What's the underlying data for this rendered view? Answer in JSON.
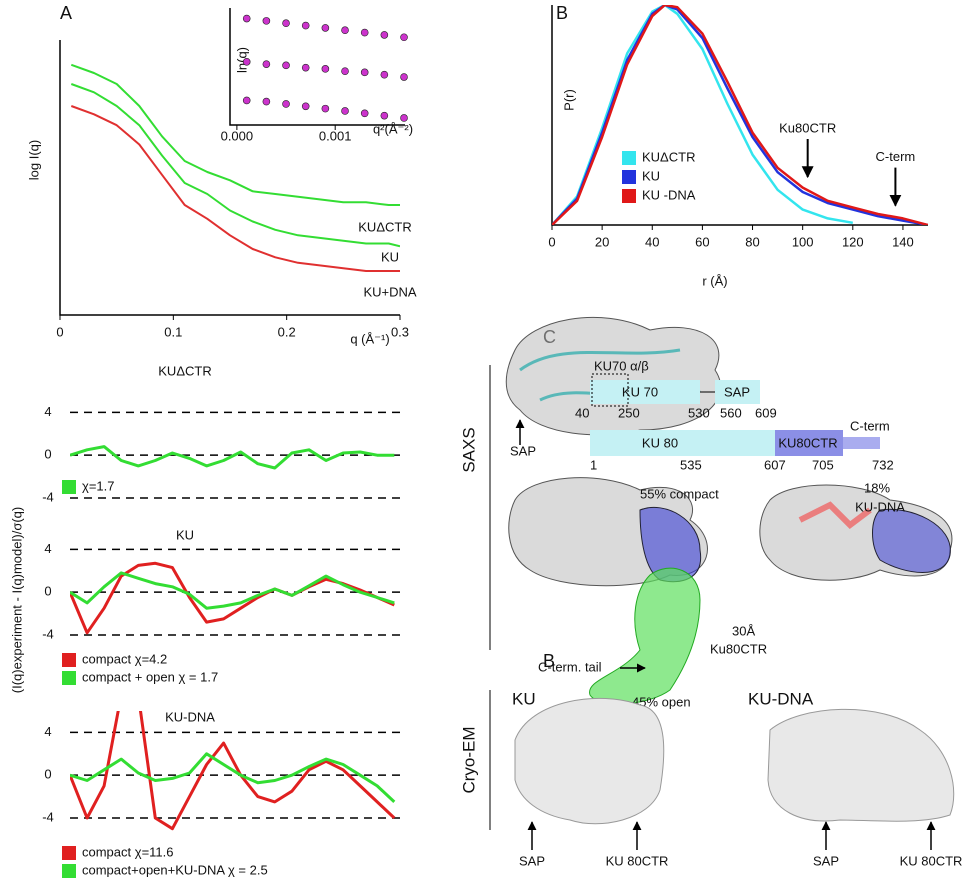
{
  "figure": {
    "panel_letters": [
      "A",
      "B",
      "C",
      "B"
    ]
  },
  "chart_data": [
    {
      "type": "line",
      "x_label": "q (Å⁻¹)",
      "y_label": "log I(q)",
      "x": [
        0.01,
        0.03,
        0.05,
        0.07,
        0.09,
        0.11,
        0.13,
        0.15,
        0.17,
        0.19,
        0.21,
        0.23,
        0.25,
        0.27,
        0.29,
        0.3
      ],
      "xlim": [
        0,
        0.3
      ],
      "xticks": [
        0,
        0.1,
        0.2,
        0.3
      ],
      "ylim": [
        0,
        10
      ],
      "series": [
        {
          "name": "KUΔCTR",
          "color": "#33dd33",
          "values": [
            9.1,
            8.8,
            8.4,
            7.6,
            6.5,
            5.6,
            5.2,
            4.9,
            4.5,
            4.4,
            4.3,
            4.2,
            4.1,
            4.1,
            4.0,
            4.0
          ]
        },
        {
          "name": "KU",
          "color": "#33dd33",
          "values": [
            8.4,
            8.1,
            7.6,
            6.9,
            5.8,
            4.8,
            4.4,
            3.8,
            3.4,
            3.1,
            2.9,
            2.8,
            2.7,
            2.6,
            2.6,
            2.5
          ]
        },
        {
          "name": "KU+DNA",
          "color": "#e03030",
          "values": [
            7.6,
            7.3,
            6.9,
            6.2,
            5.1,
            4.0,
            3.5,
            2.9,
            2.4,
            2.1,
            1.9,
            1.8,
            1.7,
            1.6,
            1.6,
            1.6
          ]
        }
      ]
    },
    {
      "type": "scatter",
      "x_label": "q²(Å⁻²)",
      "y_label": "ln(q)",
      "x": [
        0.0001,
        0.0003,
        0.0005,
        0.0007,
        0.0009,
        0.0011,
        0.0013,
        0.0015,
        0.0017
      ],
      "xlim": [
        -7e-05,
        0.00171
      ],
      "xticks": [
        {
          "value": 0,
          "label": "0.000"
        },
        {
          "value": 0.001,
          "label": "0.001"
        }
      ],
      "ylim": [
        0,
        1
      ],
      "series": [
        {
          "color": "#cc33cc",
          "values": [
            0.91,
            0.89,
            0.87,
            0.85,
            0.83,
            0.81,
            0.79,
            0.77,
            0.75
          ]
        },
        {
          "color": "#cc33cc",
          "values": [
            0.54,
            0.52,
            0.51,
            0.49,
            0.48,
            0.46,
            0.45,
            0.43,
            0.41
          ]
        },
        {
          "color": "#cc33cc",
          "values": [
            0.21,
            0.2,
            0.18,
            0.16,
            0.14,
            0.12,
            0.1,
            0.08,
            0.06
          ]
        }
      ]
    },
    {
      "type": "line",
      "x_label": "r (Å)",
      "y_label": "P(r)",
      "x": [
        0,
        10,
        20,
        30,
        40,
        45,
        50,
        60,
        70,
        80,
        90,
        100,
        110,
        120,
        130,
        140,
        150
      ],
      "xlim": [
        0,
        150
      ],
      "xticks": [
        0,
        20,
        40,
        60,
        80,
        100,
        120,
        140
      ],
      "ylim": [
        0,
        1
      ],
      "series": [
        {
          "name": "KUΔCTR",
          "color": "#33e5ee",
          "values": [
            0,
            0.13,
            0.44,
            0.78,
            0.97,
            1.0,
            0.96,
            0.8,
            0.55,
            0.32,
            0.16,
            0.07,
            0.03,
            0.01,
            null,
            null,
            null
          ]
        },
        {
          "name": "KU",
          "color": "#2233dd",
          "values": [
            0,
            0.12,
            0.42,
            0.75,
            0.96,
            1.0,
            0.98,
            0.85,
            0.62,
            0.4,
            0.24,
            0.15,
            0.1,
            0.07,
            0.04,
            0.02,
            0
          ]
        },
        {
          "name": "KU -DNA",
          "color": "#e01818",
          "values": [
            0,
            0.11,
            0.4,
            0.73,
            0.95,
            1.0,
            0.99,
            0.87,
            0.65,
            0.42,
            0.26,
            0.17,
            0.11,
            0.08,
            0.05,
            0.03,
            0
          ]
        }
      ],
      "annotations": [
        {
          "text": "Ku80CTR",
          "x": 102,
          "y": 0.2
        },
        {
          "text": "C-term",
          "x": 137,
          "y": 0.07
        }
      ]
    },
    {
      "type": "line",
      "title": "KUΔCTR",
      "y_label": "(I(q)experiment - I(q)model)/σ(q)",
      "x": [
        0.01,
        0.025,
        0.04,
        0.055,
        0.07,
        0.085,
        0.1,
        0.115,
        0.13,
        0.145,
        0.16,
        0.175,
        0.19,
        0.205,
        0.22,
        0.235,
        0.25,
        0.265,
        0.28,
        0.295
      ],
      "xlim": [
        0.01,
        0.3
      ],
      "ylim": [
        -5.5,
        6
      ],
      "yticks": [
        -4,
        0,
        4
      ],
      "grid": true,
      "series": [
        {
          "name": "χ=1.7",
          "color": "#33dd33",
          "values": [
            0,
            0.5,
            0.8,
            -0.5,
            -1,
            -0.5,
            0.2,
            -0.3,
            -1,
            -0.5,
            0.3,
            -0.8,
            -1.2,
            0.2,
            0.5,
            -0.5,
            0.2,
            0.3,
            0,
            0
          ]
        }
      ]
    },
    {
      "type": "line",
      "title": "KU",
      "x": [
        0.01,
        0.025,
        0.04,
        0.055,
        0.07,
        0.085,
        0.1,
        0.115,
        0.13,
        0.145,
        0.16,
        0.175,
        0.19,
        0.205,
        0.22,
        0.235,
        0.25,
        0.265,
        0.28,
        0.295
      ],
      "xlim": [
        0.01,
        0.3
      ],
      "ylim": [
        -5.5,
        6
      ],
      "yticks": [
        -4,
        0,
        4
      ],
      "grid": true,
      "series": [
        {
          "name": "compact χ=4.2",
          "color": "#e02020",
          "values": [
            0,
            -3.8,
            -1.5,
            1.5,
            2.5,
            2.7,
            2.3,
            -0.5,
            -2.8,
            -2.5,
            -1.5,
            -0.5,
            0.3,
            -0.3,
            0.5,
            1.2,
            0.8,
            0.2,
            -0.5,
            -1.2
          ]
        },
        {
          "name": "compact + open χ = 1.7",
          "color": "#33dd33",
          "values": [
            0,
            -1,
            0.5,
            1.8,
            1.3,
            0.8,
            0.5,
            -0.2,
            -1.5,
            -1.3,
            -1,
            -0.3,
            0.3,
            -0.3,
            0.6,
            1.5,
            0.7,
            0,
            -0.5,
            -1
          ]
        }
      ]
    },
    {
      "type": "line",
      "title": "KU-DNA",
      "x": [
        0.01,
        0.025,
        0.04,
        0.055,
        0.07,
        0.085,
        0.1,
        0.115,
        0.13,
        0.145,
        0.16,
        0.175,
        0.19,
        0.205,
        0.22,
        0.235,
        0.25,
        0.265,
        0.28,
        0.295
      ],
      "xlim": [
        0.01,
        0.3
      ],
      "ylim": [
        -5.5,
        6
      ],
      "yticks": [
        -4,
        0,
        4
      ],
      "grid": true,
      "series": [
        {
          "name": "compact χ=11.6",
          "color": "#e02020",
          "values": [
            0,
            -4,
            -1,
            7.5,
            7.5,
            -4,
            -5,
            -2,
            1,
            3,
            0,
            -2,
            -2.5,
            -1.5,
            0.5,
            1.3,
            0.5,
            -1,
            -2.5,
            -4
          ]
        },
        {
          "name": "compact+open+KU-DNA χ = 2.5",
          "color": "#33dd33",
          "values": [
            0,
            -0.5,
            0.5,
            1.5,
            0.2,
            -0.5,
            -0.3,
            0.2,
            2,
            1,
            0,
            -0.7,
            -0.5,
            0,
            0.8,
            1.5,
            1,
            0,
            -1,
            -2.5
          ]
        }
      ]
    }
  ],
  "diagram": {
    "labels": [
      "SAXS",
      "SAP",
      "KU70 α/β",
      "KU 70",
      "SAP",
      "40",
      "250",
      "530",
      "560",
      "609",
      "KU 80",
      "KU80CTR",
      "C-term",
      "1",
      "535",
      "607",
      "705",
      "732",
      "55% compact",
      "18%",
      "30Å",
      "Ku80CTR",
      "C-term. tail",
      "45% open",
      "KU-DNA",
      "Cryo-EM",
      "KU",
      "KU-DNA",
      "SAP",
      "KU 80CTR",
      "SAP",
      "KU 80CTR"
    ]
  }
}
